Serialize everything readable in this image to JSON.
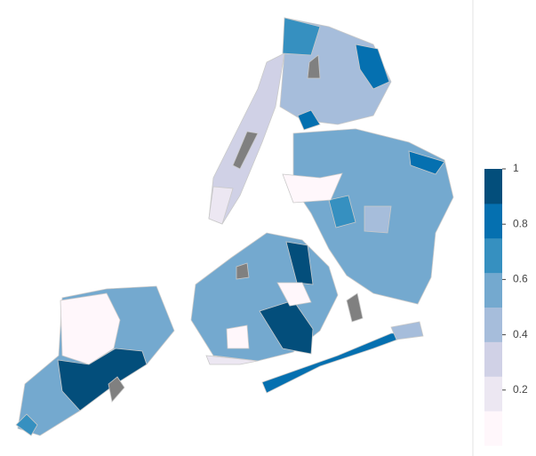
{
  "colorbar": {
    "range": [
      0,
      1
    ],
    "colors": [
      "#fff7fb",
      "#ece7f2",
      "#d0d1e6",
      "#a6bddb",
      "#74a9cf",
      "#3690c0",
      "#0570b0",
      "#034e7b"
    ],
    "ticks": [
      0.2,
      0.4,
      0.6,
      0.8,
      1
    ]
  }
}
